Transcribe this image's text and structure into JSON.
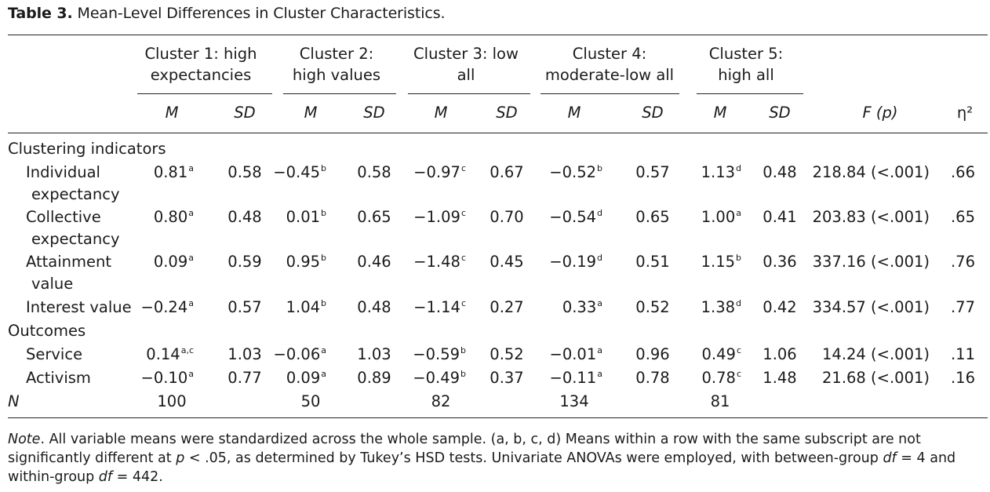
{
  "caption": {
    "label": "Table 3.",
    "text": "Mean-Level Differences in Cluster Characteristics."
  },
  "clusters": [
    {
      "line1": "Cluster 1: high",
      "line2": "expectancies"
    },
    {
      "line1": "Cluster 2:",
      "line2": "high values"
    },
    {
      "line1": "Cluster 3: low",
      "line2": "all"
    },
    {
      "line1": "Cluster 4:",
      "line2": "moderate-low all"
    },
    {
      "line1": "Cluster 5:",
      "line2": "high all"
    }
  ],
  "subheaders": {
    "m": "M",
    "sd": "SD",
    "f": "F (p)",
    "eta": "η²"
  },
  "sections": {
    "clustering": "Clustering indicators",
    "outcomes": "Outcomes",
    "n": "N"
  },
  "rows": [
    {
      "label1": "Individual",
      "label2": "expectancy",
      "cells": [
        {
          "m": "0.81",
          "s": "a",
          "sd": "0.58"
        },
        {
          "m": "−0.45",
          "s": "b",
          "sd": "0.58"
        },
        {
          "m": "−0.97",
          "s": "c",
          "sd": "0.67"
        },
        {
          "m": "−0.52",
          "s": "b",
          "sd": "0.57"
        },
        {
          "m": "1.13",
          "s": "d",
          "sd": "0.48"
        }
      ],
      "f": "218.84 (<.001)",
      "eta": ".66"
    },
    {
      "label1": "Collective",
      "label2": "expectancy",
      "cells": [
        {
          "m": "0.80",
          "s": "a",
          "sd": "0.48"
        },
        {
          "m": "0.01",
          "s": "b",
          "sd": "0.65"
        },
        {
          "m": "−1.09",
          "s": "c",
          "sd": "0.70"
        },
        {
          "m": "−0.54",
          "s": "d",
          "sd": "0.65"
        },
        {
          "m": "1.00",
          "s": "a",
          "sd": "0.41"
        }
      ],
      "f": "203.83 (<.001)",
      "eta": ".65"
    },
    {
      "label1": "Attainment",
      "label2": "value",
      "cells": [
        {
          "m": "0.09",
          "s": "a",
          "sd": "0.59"
        },
        {
          "m": "0.95",
          "s": "b",
          "sd": "0.46"
        },
        {
          "m": "−1.48",
          "s": "c",
          "sd": "0.45"
        },
        {
          "m": "−0.19",
          "s": "d",
          "sd": "0.51"
        },
        {
          "m": "1.15",
          "s": "b",
          "sd": "0.36"
        }
      ],
      "f": "337.16 (<.001)",
      "eta": ".76"
    },
    {
      "label1": "Interest value",
      "label2": "",
      "cells": [
        {
          "m": "−0.24",
          "s": "a",
          "sd": "0.57"
        },
        {
          "m": "1.04",
          "s": "b",
          "sd": "0.48"
        },
        {
          "m": "−1.14",
          "s": "c",
          "sd": "0.27"
        },
        {
          "m": "0.33",
          "s": "a",
          "sd": "0.52"
        },
        {
          "m": "1.38",
          "s": "d",
          "sd": "0.42"
        }
      ],
      "f": "334.57 (<.001)",
      "eta": ".77"
    },
    {
      "label1": "Service",
      "label2": "",
      "cells": [
        {
          "m": "0.14",
          "s": "a,c",
          "sd": "1.03"
        },
        {
          "m": "−0.06",
          "s": "a",
          "sd": "1.03"
        },
        {
          "m": "−0.59",
          "s": "b",
          "sd": "0.52"
        },
        {
          "m": "−0.01",
          "s": "a",
          "sd": "0.96"
        },
        {
          "m": "0.49",
          "s": "c",
          "sd": "1.06"
        }
      ],
      "f": "14.24 (<.001)",
      "eta": ".11"
    },
    {
      "label1": "Activism",
      "label2": "",
      "cells": [
        {
          "m": "−0.10",
          "s": "a",
          "sd": "0.77"
        },
        {
          "m": "0.09",
          "s": "a",
          "sd": "0.89"
        },
        {
          "m": "−0.49",
          "s": "b",
          "sd": "0.37"
        },
        {
          "m": "−0.11",
          "s": "a",
          "sd": "0.78"
        },
        {
          "m": "0.78",
          "s": "c",
          "sd": "1.48"
        }
      ],
      "f": "21.68 (<.001)",
      "eta": ".16"
    }
  ],
  "n_values": [
    "100",
    "50",
    "82",
    "134",
    "81"
  ],
  "note": {
    "label": "Note",
    "part1": ". All variable means were standardized across the whole sample. (a, b, c, d) Means within a row with the same subscript are not significantly different at ",
    "p": "p",
    "part2": " < .05, as determined by Tukey’s HSD tests. Univariate ANOVAs were employed, with between-group ",
    "df1": "df",
    "part3": " = 4 and within-group ",
    "df2": "df",
    "part4": " = 442."
  }
}
